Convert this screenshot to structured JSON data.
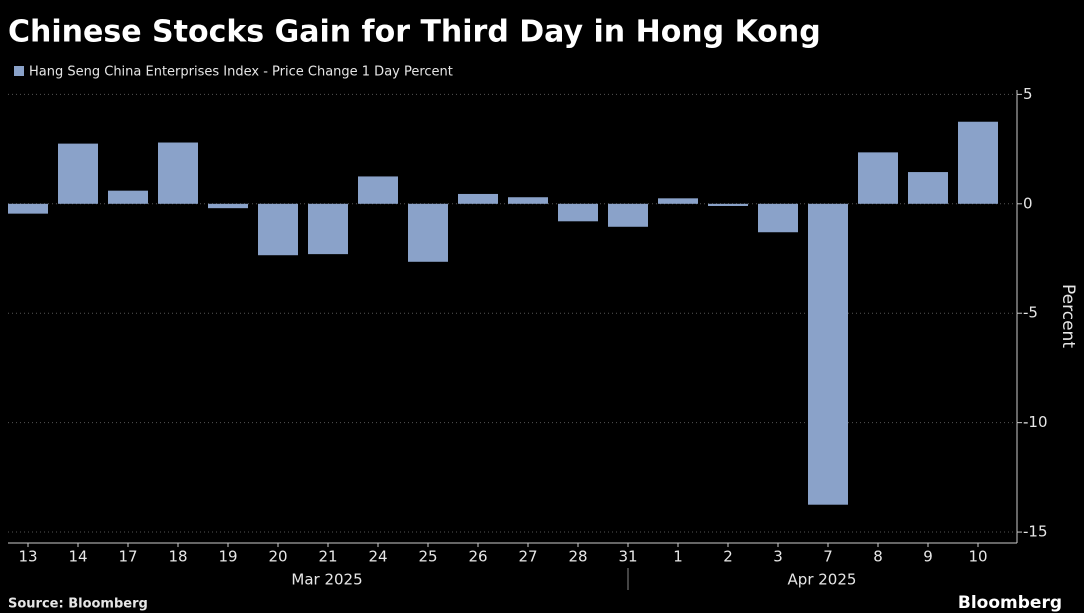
{
  "chart_data": {
    "type": "bar",
    "title": "Chinese Stocks Gain for Third Day in Hong Kong",
    "legend": "Hang Seng China Enterprises Index - Price Change 1 Day Percent",
    "y_label": "Percent",
    "categories": [
      "13",
      "14",
      "17",
      "18",
      "19",
      "20",
      "21",
      "24",
      "25",
      "26",
      "27",
      "28",
      "31",
      "1",
      "2",
      "3",
      "7",
      "8",
      "9",
      "10"
    ],
    "values": [
      -0.45,
      2.75,
      0.6,
      2.8,
      -0.2,
      -2.35,
      -2.3,
      1.25,
      -2.65,
      0.45,
      0.3,
      -0.8,
      -1.05,
      0.25,
      -0.1,
      -1.3,
      -13.75,
      2.35,
      1.45,
      3.75
    ],
    "months": [
      "Mar 2025",
      "Apr 2025"
    ],
    "color": "#8aa2c9",
    "ylim": [
      -15.5,
      5.2
    ],
    "yticks": [
      5,
      0,
      -5,
      -10,
      -15
    ],
    "grid": true,
    "source": "Source: Bloomberg",
    "brand": "Bloomberg"
  }
}
